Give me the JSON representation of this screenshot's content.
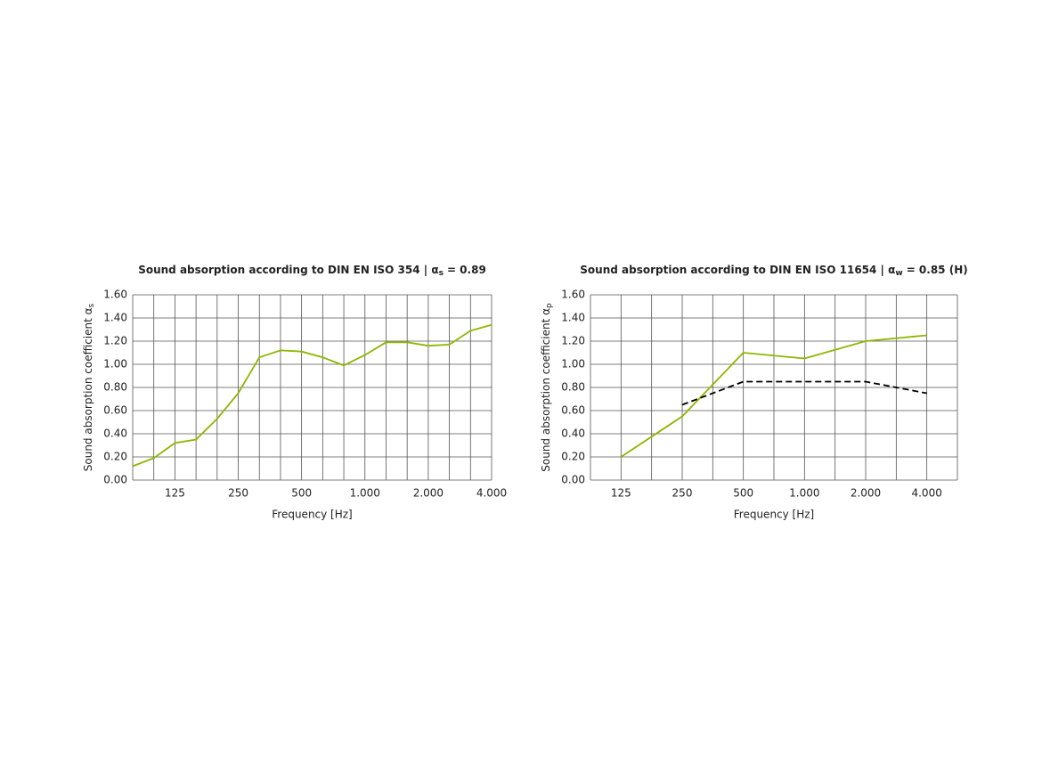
{
  "chart_data": [
    {
      "type": "line",
      "title": "Sound absorption according to DIN EN ISO 354 | α",
      "title_sub": "s",
      "title_end": "= 0.89",
      "xlabel": "Frequency [Hz]",
      "ylabel": "Sound absorption coefficient α",
      "ylabel_sub": "s",
      "categories": [
        null,
        null,
        "125",
        null,
        null,
        "250",
        null,
        null,
        "500",
        null,
        null,
        "1.000",
        null,
        null,
        "2.000",
        null,
        null,
        "4.000"
      ],
      "series": [
        {
          "color": "#8db600",
          "values": [
            0.12,
            0.19,
            0.32,
            0.35,
            0.53,
            0.75,
            1.06,
            1.12,
            1.11,
            1.06,
            0.99,
            1.08,
            1.19,
            1.19,
            1.16,
            1.17,
            1.29,
            1.34
          ]
        }
      ],
      "ylim": [
        0,
        1.6
      ],
      "yticks": [
        {
          "value": 0,
          "label": "0.00"
        },
        {
          "value": 0.2,
          "label": "0.20"
        },
        {
          "value": 0.4,
          "label": "0.40"
        },
        {
          "value": 0.6,
          "label": "0.60"
        },
        {
          "value": 0.8,
          "label": "0.80"
        },
        {
          "value": 1,
          "label": "1.00"
        },
        {
          "value": 1.2,
          "label": "1.20"
        },
        {
          "value": 1.4,
          "label": "1.40"
        },
        {
          "value": 1.6,
          "label": "1.60"
        }
      ],
      "grid": true
    },
    {
      "type": "line",
      "title": "Sound absorption according to DIN EN ISO 11654 | α",
      "title_sub": "w",
      "title_end": "= 0.85 (H)",
      "xlabel": "Frequency [Hz]",
      "ylabel": "Sound absorption coefficient α",
      "ylabel_sub": "p",
      "categories": [
        "125",
        "250",
        "500",
        "1.000",
        "2.000",
        "4.000"
      ],
      "series": [
        {
          "color": "#8db600",
          "values": [
            0.2,
            0.55,
            1.1,
            1.05,
            1.2,
            1.25
          ]
        },
        {
          "color": "#000000",
          "dashed": true,
          "values": [
            null,
            0.65,
            0.85,
            0.85,
            0.85,
            0.75
          ]
        }
      ],
      "ylim": [
        0,
        1.6
      ],
      "yticks": [
        {
          "value": 0,
          "label": "0.00"
        },
        {
          "value": 0.2,
          "label": "0.20"
        },
        {
          "value": 0.4,
          "label": "0.40"
        },
        {
          "value": 0.6,
          "label": "0.60"
        },
        {
          "value": 0.8,
          "label": "0.80"
        },
        {
          "value": 1,
          "label": "1.00"
        },
        {
          "value": 1.2,
          "label": "1.20"
        },
        {
          "value": 1.4,
          "label": "1.40"
        },
        {
          "value": 1.6,
          "label": "1.60"
        }
      ],
      "grid": true
    }
  ]
}
